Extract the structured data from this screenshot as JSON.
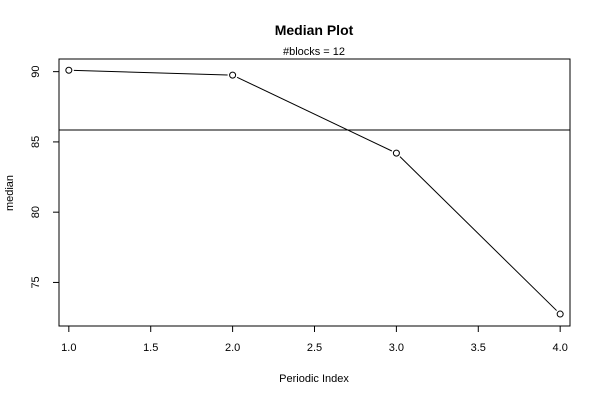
{
  "chart_data": {
    "type": "line",
    "title": "Median Plot",
    "subtitle": "#blocks =  12",
    "xlabel": "Periodic Index",
    "ylabel": "median",
    "xlim": [
      0.94,
      4.06
    ],
    "ylim": [
      71.9,
      90.9
    ],
    "x_ticks": [
      1.0,
      1.5,
      2.0,
      2.5,
      3.0,
      3.5,
      4.0
    ],
    "x_tick_labels": [
      "1.0",
      "1.5",
      "2.0",
      "2.5",
      "3.0",
      "3.5",
      "4.0"
    ],
    "y_ticks": [
      75,
      80,
      85,
      90
    ],
    "y_tick_labels": [
      "75",
      "80",
      "85",
      "90"
    ],
    "x": [
      1,
      2,
      3,
      4
    ],
    "y": [
      90.1,
      89.75,
      84.2,
      72.75
    ],
    "reference_line": 85.85,
    "grid": false,
    "legend": "none",
    "colors": {
      "line": "#000000",
      "marker": "#000000",
      "background": "#ffffff"
    }
  }
}
